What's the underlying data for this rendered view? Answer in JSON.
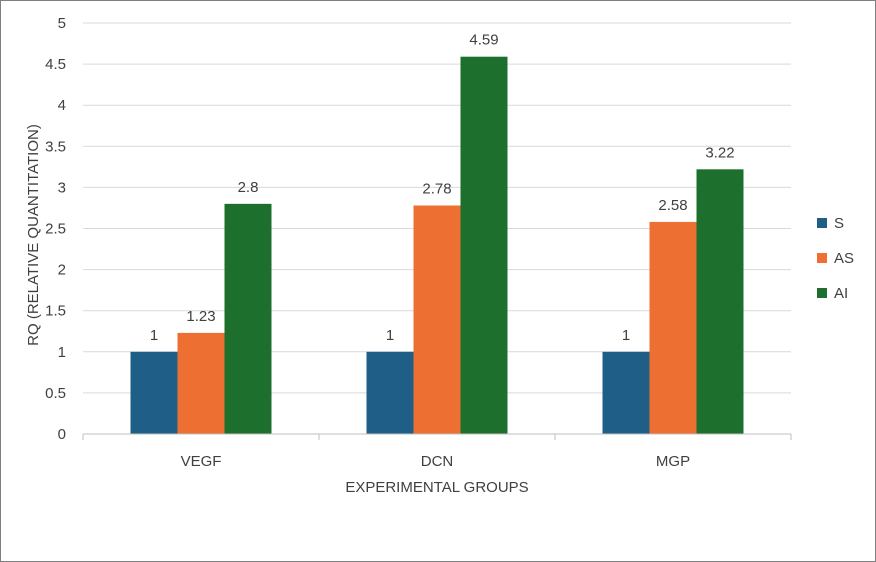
{
  "chart_data": {
    "type": "bar",
    "categories": [
      "VEGF",
      "DCN",
      "MGP"
    ],
    "series": [
      {
        "name": "S",
        "values": [
          1,
          1,
          1
        ],
        "color": "#1f5f87"
      },
      {
        "name": "AS",
        "values": [
          1.23,
          2.78,
          2.58
        ],
        "color": "#ed7032"
      },
      {
        "name": "AI",
        "values": [
          2.8,
          4.59,
          3.22
        ],
        "color": "#1c6f2c"
      }
    ],
    "data_labels": [
      [
        "1",
        "1",
        "1"
      ],
      [
        "1.23",
        "2.78",
        "2.58"
      ],
      [
        "2.8",
        "4.59",
        "3.22"
      ]
    ],
    "yticks": [
      "0",
      "0.5",
      "1",
      "1.5",
      "2",
      "2.5",
      "3",
      "3.5",
      "4",
      "4.5",
      "5"
    ],
    "ylim": [
      0,
      5
    ],
    "xlabel": "EXPERIMENTAL GROUPS",
    "ylabel": "RQ (RELATIVE QUANTITATION)",
    "grid": true,
    "legend_position": "right"
  }
}
